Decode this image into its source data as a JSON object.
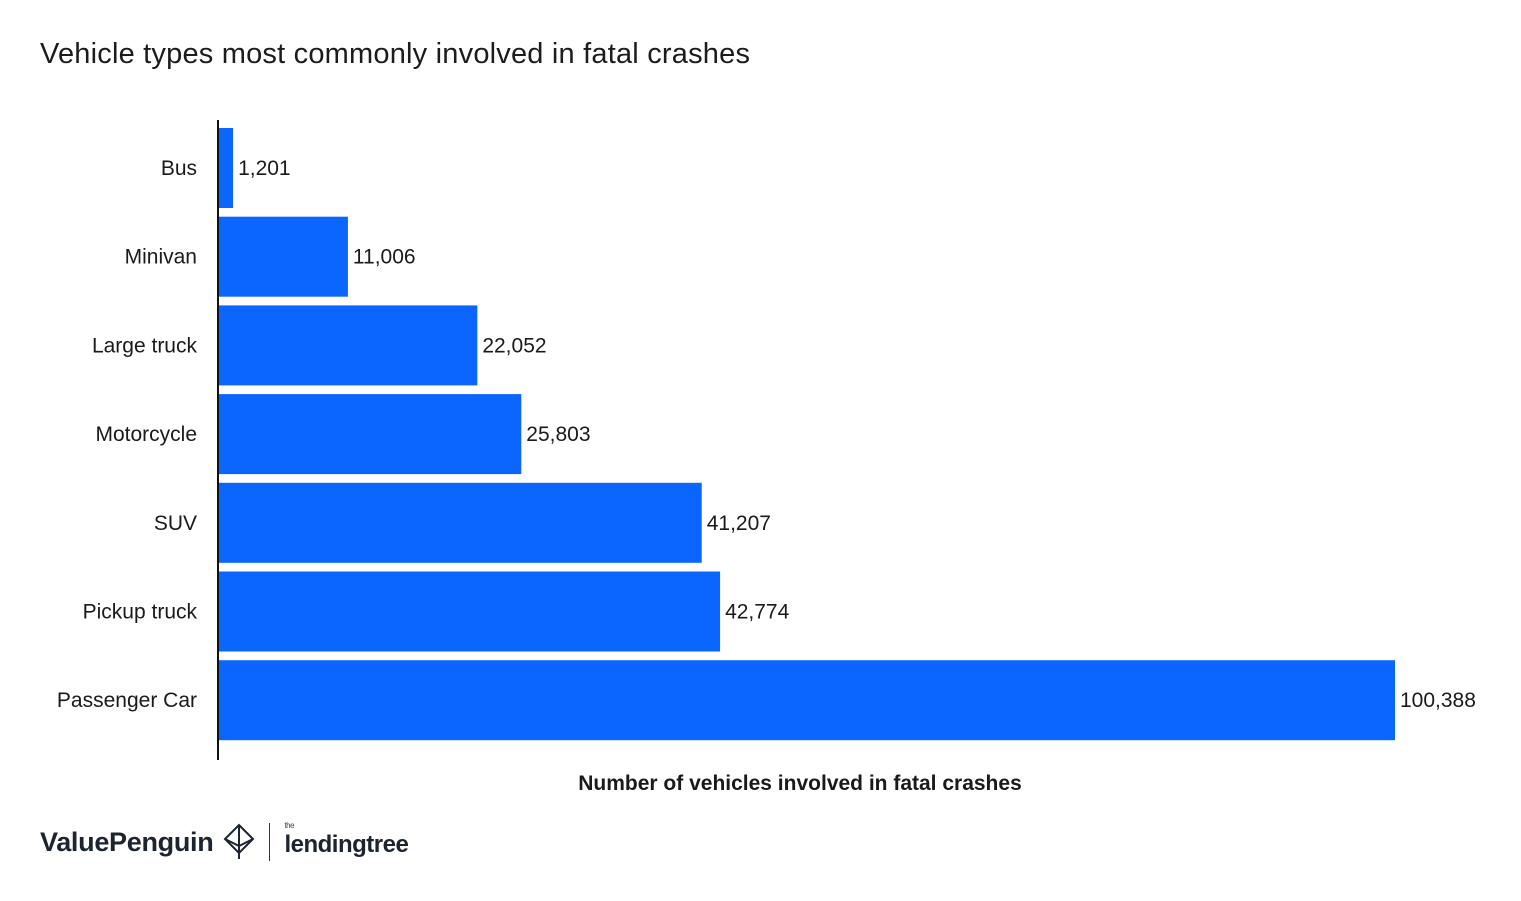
{
  "chart_data": {
    "type": "bar",
    "orientation": "horizontal",
    "title": "Vehicle types most commonly involved in fatal crashes",
    "xlabel": "Number of vehicles involved in fatal crashes",
    "ylabel": "",
    "categories": [
      "Bus",
      "Minivan",
      "Large truck",
      "Motorcycle",
      "SUV",
      "Pickup truck",
      "Passenger Car"
    ],
    "values": [
      1201,
      11006,
      22052,
      25803,
      41207,
      42774,
      100388
    ],
    "value_labels": [
      "1,201",
      "11,006",
      "22,052",
      "25,803",
      "41,207",
      "42,774",
      "100,388"
    ],
    "xlim": [
      0,
      100388
    ],
    "grid": false,
    "legend": "none",
    "bar_color": "#0a66ff"
  },
  "footer": {
    "brand": "ValuePenguin",
    "brand_icon": "penguin-diamond-icon",
    "partner_prefix": "the",
    "partner": "lendingtree"
  }
}
